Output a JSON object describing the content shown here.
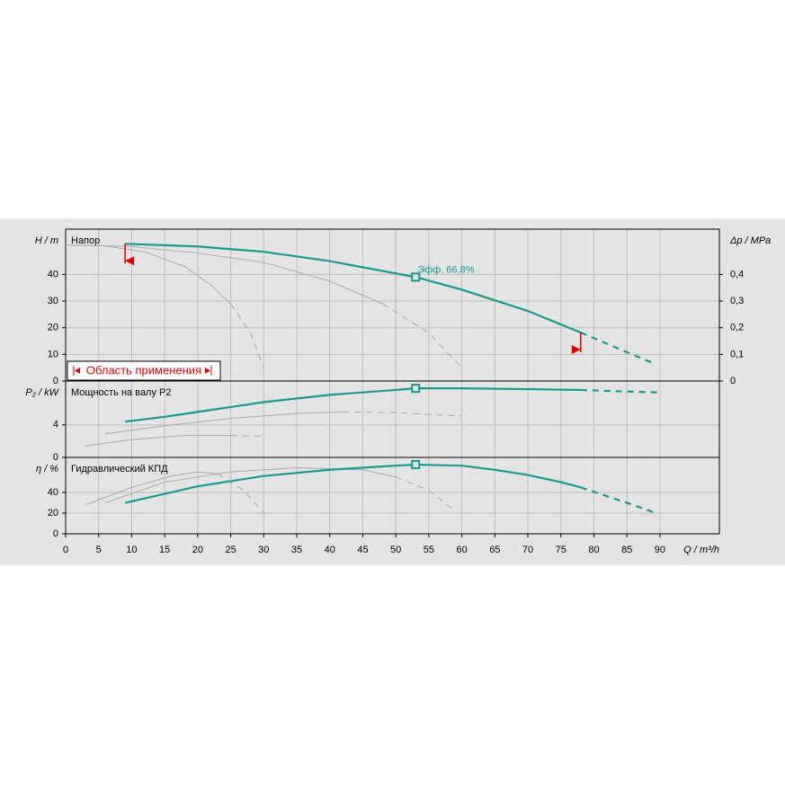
{
  "chart_data": [
    {
      "type": "line",
      "title": "Напор",
      "ylabel": "H / m",
      "y2label": "Δp / MPa",
      "xlim": [
        0,
        99
      ],
      "ylim": [
        0,
        57
      ],
      "yticks": [
        0,
        10,
        20,
        30,
        40
      ],
      "y2lim": [
        0,
        0.57
      ],
      "y2ticks": [
        0,
        {
          "value": 0.1,
          "label": "0,1"
        },
        {
          "value": 0.2,
          "label": "0,2"
        },
        {
          "value": 0.3,
          "label": "0,3"
        },
        {
          "value": 0.4,
          "label": "0,4"
        }
      ],
      "series": [
        {
          "color": "#aaaaaa",
          "dash": false,
          "x": [
            0,
            10,
            20,
            30,
            40,
            48
          ],
          "values": [
            51,
            50.5,
            48,
            44.5,
            37.5,
            29
          ]
        },
        {
          "color": "#aaaaaa",
          "dash": true,
          "x": [
            48,
            55,
            60
          ],
          "values": [
            29,
            18,
            5
          ]
        },
        {
          "color": "#aaaaaa",
          "dash": false,
          "x": [
            5,
            12,
            18,
            22,
            25
          ],
          "values": [
            51,
            48.5,
            43,
            36,
            29
          ]
        },
        {
          "color": "#aaaaaa",
          "dash": true,
          "x": [
            25,
            28,
            30
          ],
          "values": [
            29,
            18,
            5
          ]
        },
        {
          "color": "#1a9a8a",
          "dash": false,
          "x": [
            9,
            20,
            30,
            40,
            53,
            60,
            70,
            78
          ],
          "values": [
            51.5,
            50.5,
            48.5,
            45,
            39,
            34.3,
            26.3,
            18.2
          ]
        },
        {
          "color": "#1a9a8a",
          "dash": true,
          "x": [
            78,
            85,
            89
          ],
          "values": [
            18.2,
            10.8,
            6.7
          ]
        }
      ],
      "marker": {
        "x": 53,
        "value": 39
      },
      "annotation": "Эфф.  66,8%",
      "application_range": {
        "label": "Область применения",
        "limits": [
          9,
          78
        ]
      }
    },
    {
      "type": "line",
      "title": "Мощность на валу P2",
      "ylabel": "P₂ / kW",
      "xlim": [
        0,
        99
      ],
      "ylim": [
        0,
        9.4
      ],
      "yticks": [
        0,
        4
      ],
      "series": [
        {
          "color": "#aaaaaa",
          "dash": false,
          "x": [
            6,
            15,
            25,
            35,
            42
          ],
          "values": [
            2.9,
            3.9,
            4.8,
            5.4,
            5.6
          ]
        },
        {
          "color": "#aaaaaa",
          "dash": true,
          "x": [
            42,
            50,
            60
          ],
          "values": [
            5.6,
            5.5,
            5.1
          ]
        },
        {
          "color": "#aaaaaa",
          "dash": false,
          "x": [
            3,
            10,
            18,
            25
          ],
          "values": [
            1.4,
            2.2,
            2.7,
            2.7
          ]
        },
        {
          "color": "#aaaaaa",
          "dash": true,
          "x": [
            25,
            30
          ],
          "values": [
            2.7,
            2.6
          ]
        },
        {
          "color": "#1a9a8a",
          "dash": false,
          "x": [
            9,
            15,
            20,
            30,
            40,
            50,
            53,
            60,
            70,
            78
          ],
          "values": [
            4.4,
            5.0,
            5.6,
            6.8,
            7.7,
            8.3,
            8.5,
            8.5,
            8.4,
            8.3
          ]
        },
        {
          "color": "#1a9a8a",
          "dash": true,
          "x": [
            78,
            85,
            90
          ],
          "values": [
            8.3,
            8.1,
            8.0
          ]
        }
      ],
      "marker": {
        "x": 53,
        "value": 8.5
      }
    },
    {
      "type": "line",
      "title": "Гидравлический КПД",
      "ylabel": "η / %",
      "xlabel": "Q / m³/h",
      "xlim": [
        0,
        99
      ],
      "ylim": [
        0,
        74
      ],
      "yticks": [
        0,
        20,
        40
      ],
      "xticks": [
        0,
        5,
        10,
        15,
        20,
        25,
        30,
        35,
        40,
        45,
        50,
        55,
        60,
        65,
        70,
        75,
        80,
        85,
        90
      ],
      "series": [
        {
          "color": "#aaaaaa",
          "dash": false,
          "x": [
            3,
            10,
            16,
            20,
            23
          ],
          "values": [
            28,
            45,
            56,
            60,
            58
          ]
        },
        {
          "color": "#aaaaaa",
          "dash": true,
          "x": [
            23,
            27,
            30
          ],
          "values": [
            58,
            42,
            20
          ]
        },
        {
          "color": "#aaaaaa",
          "dash": false,
          "x": [
            6,
            15,
            25,
            35,
            45,
            50
          ],
          "values": [
            30,
            50,
            60,
            64,
            62,
            55
          ]
        },
        {
          "color": "#aaaaaa",
          "dash": true,
          "x": [
            50,
            55,
            59
          ],
          "values": [
            55,
            42,
            22
          ]
        },
        {
          "color": "#1a9a8a",
          "dash": false,
          "x": [
            9,
            20,
            30,
            40,
            50,
            53,
            60,
            65,
            70,
            75,
            78
          ],
          "values": [
            30,
            46,
            56,
            62,
            66,
            67,
            66,
            62,
            57,
            50,
            45
          ]
        },
        {
          "color": "#1a9a8a",
          "dash": true,
          "x": [
            78,
            85,
            89
          ],
          "values": [
            45,
            30,
            21
          ]
        }
      ],
      "marker": {
        "x": 53,
        "value": 67
      }
    }
  ]
}
